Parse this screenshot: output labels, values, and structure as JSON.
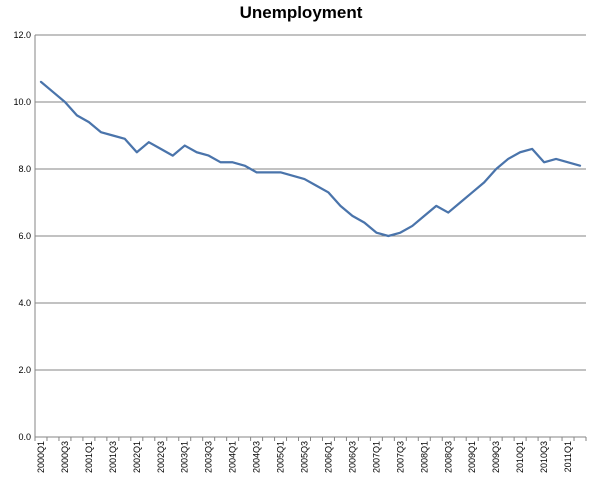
{
  "chart_data": {
    "type": "line",
    "title": "Unemployment",
    "xlabel": "",
    "ylabel": "",
    "ylim": [
      0,
      12
    ],
    "yticks": [
      "0.0",
      "2.0",
      "4.0",
      "6.0",
      "8.0",
      "10.0",
      "12.0"
    ],
    "grid": true,
    "legend": "none",
    "line_color": "#4a74ab",
    "x": [
      "2000Q1",
      "2000Q2",
      "2000Q3",
      "2000Q4",
      "2001Q1",
      "2001Q2",
      "2001Q3",
      "2001Q4",
      "2002Q1",
      "2002Q2",
      "2002Q3",
      "2002Q4",
      "2003Q1",
      "2003Q2",
      "2003Q3",
      "2003Q4",
      "2004Q1",
      "2004Q2",
      "2004Q3",
      "2004Q4",
      "2005Q1",
      "2005Q2",
      "2005Q3",
      "2005Q4",
      "2006Q1",
      "2006Q2",
      "2006Q3",
      "2006Q4",
      "2007Q1",
      "2007Q2",
      "2007Q3",
      "2007Q4",
      "2008Q1",
      "2008Q2",
      "2008Q3",
      "2008Q4",
      "2009Q1",
      "2009Q2",
      "2009Q3",
      "2009Q4",
      "2010Q1",
      "2010Q2",
      "2010Q3",
      "2010Q4",
      "2011Q1",
      "2011Q2"
    ],
    "x_tick_labels": [
      "2000Q1",
      "",
      "2000Q3",
      "",
      "2001Q1",
      "",
      "2001Q3",
      "",
      "2002Q1",
      "",
      "2002Q3",
      "",
      "2003Q1",
      "",
      "2003Q3",
      "",
      "2004Q1",
      "",
      "2004Q3",
      "",
      "2005Q1",
      "",
      "2005Q3",
      "",
      "2006Q1",
      "",
      "2006Q3",
      "",
      "2007Q1",
      "",
      "2007Q3",
      "",
      "2008Q1",
      "",
      "2008Q3",
      "",
      "2009Q1",
      "",
      "2009Q3",
      "",
      "2010Q1",
      "",
      "2010Q3",
      "",
      "2011Q1",
      ""
    ],
    "series": [
      {
        "values": [
          10.6,
          10.3,
          10.0,
          9.6,
          9.4,
          9.1,
          9.0,
          8.9,
          8.5,
          8.8,
          8.6,
          8.4,
          8.7,
          8.5,
          8.4,
          8.2,
          8.2,
          8.1,
          7.9,
          7.9,
          7.9,
          7.8,
          7.7,
          7.5,
          7.3,
          6.9,
          6.6,
          6.4,
          6.1,
          6.0,
          6.1,
          6.3,
          6.6,
          6.9,
          6.7,
          7.0,
          7.3,
          7.6,
          8.0,
          8.3,
          8.5,
          8.6,
          8.2,
          8.3,
          8.2,
          8.1
        ]
      }
    ]
  }
}
